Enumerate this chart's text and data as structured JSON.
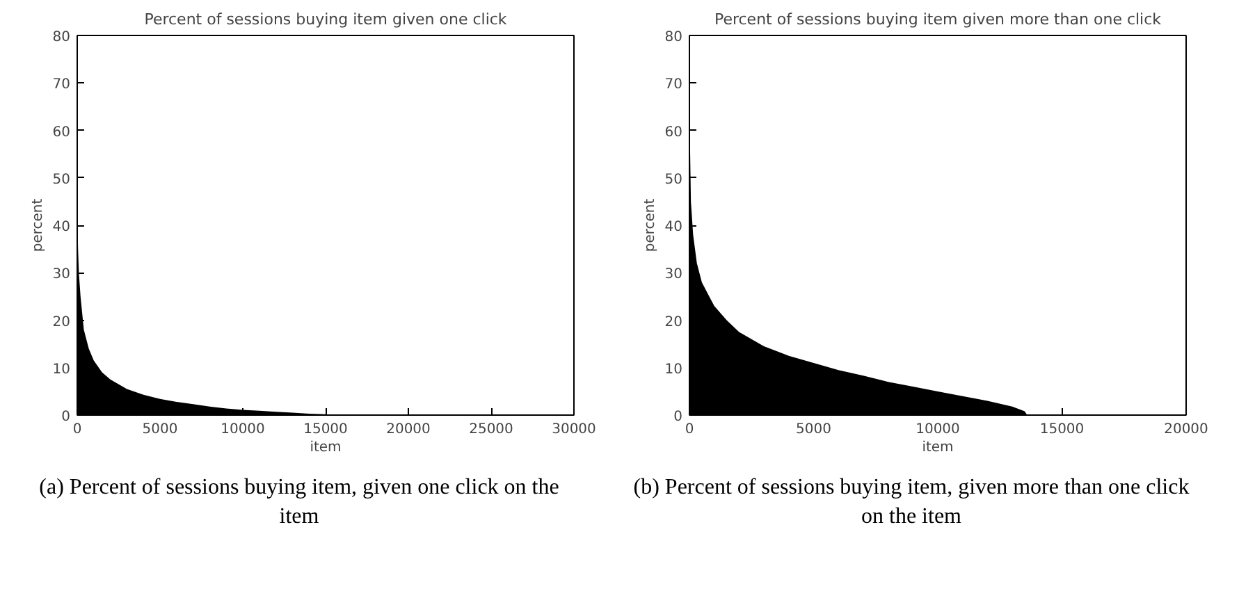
{
  "chart_data": [
    {
      "type": "area",
      "title": "Percent of sessions buying item given one click",
      "xlabel": "item",
      "ylabel": "percent",
      "x": [
        0,
        20,
        50,
        100,
        200,
        400,
        700,
        1000,
        1500,
        2000,
        3000,
        4000,
        5000,
        6000,
        7000,
        8000,
        9000,
        10000,
        11000,
        12000,
        13000,
        14000,
        15000,
        15300,
        28500
      ],
      "series": [
        {
          "color": "#000000",
          "values": [
            50,
            40,
            35,
            30,
            25,
            18,
            14,
            11.5,
            9,
            7.5,
            5.5,
            4.3,
            3.4,
            2.8,
            2.3,
            1.8,
            1.4,
            1.1,
            0.9,
            0.7,
            0.5,
            0.3,
            0.2,
            0,
            0
          ]
        }
      ],
      "xlim": [
        0,
        30000
      ],
      "xticks": [
        0,
        5000,
        10000,
        15000,
        20000,
        25000,
        30000
      ],
      "ylim": [
        0,
        80
      ],
      "yticks": [
        0,
        10,
        20,
        30,
        40,
        50,
        60,
        70,
        80
      ],
      "grid": false,
      "annotations": [
        "(a) Percent of sessions buying item, given one click on the item"
      ]
    },
    {
      "type": "area",
      "title": "Percent of sessions buying item given more than one click",
      "xlabel": "item",
      "ylabel": "percent",
      "x": [
        0,
        30,
        60,
        150,
        300,
        500,
        800,
        1000,
        1500,
        2000,
        3000,
        4000,
        5000,
        6000,
        7000,
        8000,
        9000,
        10000,
        11000,
        12000,
        13000,
        13500,
        13600,
        18500
      ],
      "series": [
        {
          "color": "#000000",
          "values": [
            65,
            55,
            45,
            38,
            32,
            28,
            25,
            23,
            20,
            17.5,
            14.5,
            12.5,
            11,
            9.5,
            8.3,
            7,
            6,
            5,
            4,
            3,
            1.8,
            0.8,
            0,
            0
          ]
        }
      ],
      "xlim": [
        0,
        20000
      ],
      "xticks": [
        0,
        5000,
        10000,
        15000,
        20000
      ],
      "ylim": [
        0,
        80
      ],
      "yticks": [
        0,
        10,
        20,
        30,
        40,
        50,
        60,
        70,
        80
      ],
      "grid": false,
      "annotations": [
        "(b) Percent of sessions buying item, given more than one click on the item"
      ]
    }
  ]
}
